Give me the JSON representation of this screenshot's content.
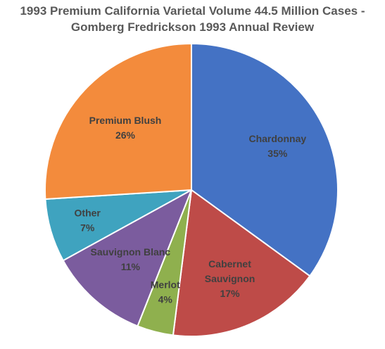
{
  "chart_data": {
    "type": "pie",
    "title_lines": [
      "1993 Premium California Varietal Volume 44.5 Million Cases -",
      "Gomberg Fredrickson 1993 Annual Review"
    ],
    "slices": [
      {
        "label_lines": [
          "Chardonnay"
        ],
        "percent_label": "35%",
        "value": 35,
        "color": "#4472C4"
      },
      {
        "label_lines": [
          "Cabernet",
          "Sauvignon"
        ],
        "percent_label": "17%",
        "value": 17,
        "color": "#BE4B48"
      },
      {
        "label_lines": [
          "Merlot"
        ],
        "percent_label": "4%",
        "value": 4,
        "color": "#8FB04E"
      },
      {
        "label_lines": [
          "Sauvignon Blanc"
        ],
        "percent_label": "11%",
        "value": 11,
        "color": "#7B5C9E"
      },
      {
        "label_lines": [
          "Other"
        ],
        "percent_label": "7%",
        "value": 7,
        "color": "#3FA3BF"
      },
      {
        "label_lines": [
          "Premium Blush"
        ],
        "percent_label": "26%",
        "value": 26,
        "color": "#F38B3C"
      }
    ],
    "legend": "none",
    "start_angle": "12 o'clock",
    "direction": "clockwise"
  }
}
